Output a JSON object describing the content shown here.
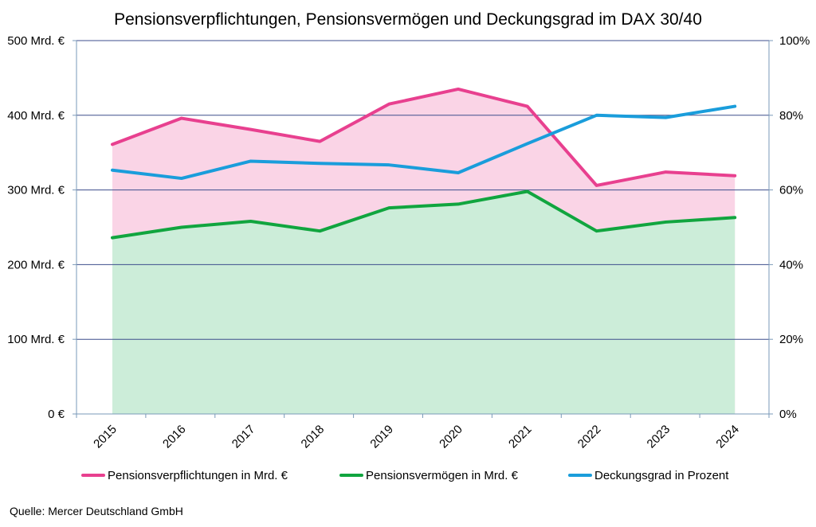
{
  "chart_data": {
    "type": "line",
    "title": "Pensionsverpflichtungen, Pensionsvermögen und Deckungsgrad im DAX 30/40",
    "categories": [
      "2015",
      "2016",
      "2017",
      "2018",
      "2019",
      "2020",
      "2021",
      "2022",
      "2023",
      "2024"
    ],
    "y_left": {
      "range": [
        0,
        500
      ],
      "ticks": [
        0,
        100,
        200,
        300,
        400,
        500
      ],
      "tick_labels": [
        "0 €",
        "100 Mrd. €",
        "200 Mrd. €",
        "300 Mrd. €",
        "400 Mrd. €",
        "500 Mrd. €"
      ]
    },
    "y_right": {
      "range": [
        0,
        100
      ],
      "ticks": [
        0,
        20,
        40,
        60,
        80,
        100
      ],
      "tick_labels": [
        "0%",
        "20%",
        "40%",
        "60%",
        "80%",
        "100%"
      ]
    },
    "grid": true,
    "legend_position": "bottom",
    "series": [
      {
        "name": "Pensionsverpflichtungen in Mrd. €",
        "axis": "left",
        "color": "#e8408f",
        "fill": "#fad4e6",
        "values": [
          361,
          396,
          381,
          365,
          415,
          435,
          412,
          306,
          324,
          319
        ]
      },
      {
        "name": "Pensionsvermögen in Mrd. €",
        "axis": "left",
        "color": "#11a53f",
        "fill": "#ccedd9",
        "values": [
          236,
          250,
          258,
          245,
          276,
          281,
          298,
          245,
          257,
          263
        ]
      },
      {
        "name": "Deckungsgrad in Prozent",
        "axis": "right",
        "color": "#1a9ddb",
        "values": [
          65.3,
          63.1,
          67.7,
          67.1,
          66.7,
          64.6,
          72.4,
          80,
          79.4,
          82.4
        ]
      }
    ]
  },
  "source": "Quelle: Mercer Deutschland GmbH"
}
